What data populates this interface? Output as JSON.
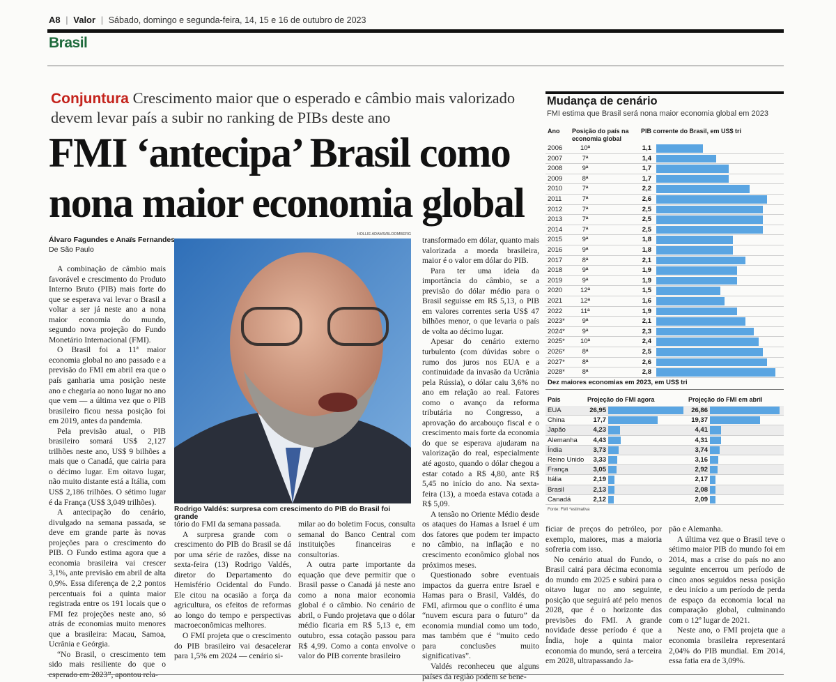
{
  "header": {
    "page": "A8",
    "paper": "Valor",
    "date": "Sábado, domingo e segunda-feira, 14, 15 e 16 de outubro de 2023",
    "section": "Brasil"
  },
  "article": {
    "kicker": "Conjuntura",
    "deck": "Crescimento maior que o esperado e câmbio mais valorizado devem levar país a subir no ranking de PIBs deste ano",
    "headline": [
      "FMI ‘antecipa’ Brasil como",
      "nona maior economia global"
    ],
    "byline": "Álvaro Fagundes e Anaïs Fernandes",
    "dateline": "De São Paulo",
    "photo_credit": "HOLLIE ADAMS/BLOOMBERG",
    "caption": "Rodrigo Valdés: surpresa com crescimento do PIB do Brasil foi grande",
    "columns": [
      [
        "A combinação de câmbio mais favorável e crescimento do Produto Interno Bruto (PIB) mais forte do que se esperava vai levar o Brasil a voltar a ser já neste ano a nona maior economia do mundo, segundo nova projeção do Fundo Monetário Internacional (FMI).",
        "O Brasil foi a 11ª maior economia global no ano passado e a previsão do FMI em abril era que o país ganharia uma posição neste ano e chegaria ao nono lugar no ano que vem — a última vez que o PIB brasileiro ficou nessa posição foi em 2019, antes da pandemia.",
        "Pela previsão atual, o PIB brasileiro somará US$ 2,127 trilhões neste ano, US$ 9 bilhões a mais que o Canadá, que cairia para o décimo lugar. Em oitavo lugar, não muito distante está a Itália, com US$ 2,186 trilhões. O sétimo lugar é da França (US$ 3,049 trilhões).",
        "A antecipação do cenário, divulgado na semana passada, se deve em grande parte às novas projeções para o crescimento do PIB. O Fundo estima agora que a economia brasileira vai crescer 3,1%, ante previsão em abril de alta 0,9%. Essa diferença de 2,2 pontos percentuais foi a quinta maior registrada entre os 191 locais que o FMI fez projeções neste ano, só atrás de economias muito menores que a brasileira: Macau, Samoa, Ucrânia e Geórgia.",
        "“No Brasil, o crescimento tem sido mais resiliente do que o esperado em 2023”, apontou rela-"
      ],
      [
        "tório do FMI da semana passada.",
        "A surpresa grande com o crescimento do PIB do Brasil se dá por uma série de razões, disse na sexta-feira (13) Rodrigo Valdés, diretor do Departamento do Hemisfério Ocidental do Fundo. Ele citou na ocasião a força da agricultura, os efeitos de reformas ao longo do tempo e perspectivas macroeconômicas melhores.",
        "O FMI projeta que o crescimento do PIB brasileiro vai desacelerar para 1,5% em 2024 — cenário si-"
      ],
      [
        "milar ao do boletim Focus, consulta semanal do Banco Central com instituições financeiras e consultorias.",
        "A outra parte importante da equação que deve permitir que o Brasil passe o Canadá já neste ano como a nona maior economia global é o câmbio. No cenário de abril, o Fundo projetava que o dólar médio ficaria em R$ 5,13 e, em outubro, essa cotação passou para R$ 4,99. Como a conta envolve o valor do PIB corrente brasileiro"
      ],
      [
        "transformado em dólar, quanto mais valorizada a moeda brasileira, maior é o valor em dólar do PIB.",
        "Para ter uma ideia da importância do câmbio, se a previsão do dólar médio para o Brasil seguisse em R$ 5,13, o PIB em valores correntes seria US$ 47 bilhões menor, o que levaria o país de volta ao décimo lugar.",
        "Apesar do cenário externo turbulento (com dúvidas sobre o rumo dos juros nos EUA e a continuidade da invasão da Ucrânia pela Rússia), o dólar caiu 3,6% no ano em relação ao real. Fatores como o avanço da reforma tributária no Congresso, a aprovação do arcabouço fiscal e o crescimento mais forte da economia do que se esperava ajudaram na valorização do real, especialmente até agosto, quando o dólar chegou a estar cotado a R$ 4,80, ante R$ 5,45 no início do ano. Na sexta-feira (13), a moeda estava cotada a R$ 5,09.",
        "A tensão no Oriente Médio desde os ataques do Hamas a Israel é um dos fatores que podem ter impacto no câmbio, na inflação e no crescimento econômico global nos próximos meses.",
        "Questionado sobre eventuais impactos da guerra entre Israel e Hamas para o Brasil, Valdés, do FMI, afirmou que o conflito é uma “nuvem escura para o futuro” da economia mundial como um todo, mas também que é “muito cedo para conclusões muito significativas”.",
        "Valdés reconheceu que alguns países da região podem se bene-"
      ],
      [
        "ficiar de preços do petróleo, por exemplo, maiores, mas a maioria sofreria com isso.",
        "No cenário atual do Fundo, o Brasil cairá para décima economia do mundo em 2025 e subirá para o oitavo lugar no ano seguinte, posição que seguirá até pelo menos 2028, que é o horizonte das previsões do FMI. A grande novidade desse período é que a Índia, hoje a quinta maior economia do mundo, será a terceira em 2028, ultrapassando Ja-"
      ],
      [
        "pão e Alemanha.",
        "A última vez que o Brasil teve o sétimo maior PIB do mundo foi em 2014, mas a crise do país no ano seguinte encerrou um período de cinco anos seguidos nessa posição e deu início a um período de perda de espaço da economia local na comparação global, culminando com o 12º lugar de 2021.",
        "Neste ano, o FMI projeta que a economia brasileira representará 2,04% do PIB mundial. Em 2014, essa fatia era de 3,09%."
      ]
    ]
  },
  "sidebar": {
    "title": "Mudança de cenário",
    "subtitle": "FMI estima que Brasil será nona maior economia global em 2023",
    "table1": {
      "headers": [
        "Ano",
        "Posição do país na economia global",
        "PIB corrente do Brasil, em US$ tri"
      ],
      "rows": [
        [
          "2006",
          "10ª",
          {
            "value": 1.1,
            "label": "1,1"
          }
        ],
        [
          "2007",
          "7ª",
          {
            "value": 1.4,
            "label": "1,4"
          }
        ],
        [
          "2008",
          "9ª",
          {
            "value": 1.7,
            "label": "1,7"
          }
        ],
        [
          "2009",
          "8ª",
          {
            "value": 1.7,
            "label": "1,7"
          }
        ],
        [
          "2010",
          "7ª",
          {
            "value": 2.2,
            "label": "2,2"
          }
        ],
        [
          "2011",
          "7ª",
          {
            "value": 2.6,
            "label": "2,6"
          }
        ],
        [
          "2012",
          "7ª",
          {
            "value": 2.5,
            "label": "2,5"
          }
        ],
        [
          "2013",
          "7ª",
          {
            "value": 2.5,
            "label": "2,5"
          }
        ],
        [
          "2014",
          "7ª",
          {
            "value": 2.5,
            "label": "2,5"
          }
        ],
        [
          "2015",
          "9ª",
          {
            "value": 1.8,
            "label": "1,8"
          }
        ],
        [
          "2016",
          "9ª",
          {
            "value": 1.8,
            "label": "1,8"
          }
        ],
        [
          "2017",
          "8ª",
          {
            "value": 2.1,
            "label": "2,1"
          }
        ],
        [
          "2018",
          "9ª",
          {
            "value": 1.9,
            "label": "1,9"
          }
        ],
        [
          "2019",
          "9ª",
          {
            "value": 1.9,
            "label": "1,9"
          }
        ],
        [
          "2020",
          "12ª",
          {
            "value": 1.5,
            "label": "1,5"
          }
        ],
        [
          "2021",
          "12ª",
          {
            "value": 1.6,
            "label": "1,6"
          }
        ],
        [
          "2022",
          "11ª",
          {
            "value": 1.9,
            "label": "1,9"
          }
        ],
        [
          "2023*",
          "9ª",
          {
            "value": 2.1,
            "label": "2,1"
          }
        ],
        [
          "2024*",
          "9ª",
          {
            "value": 2.3,
            "label": "2,3"
          }
        ],
        [
          "2025*",
          "10ª",
          {
            "value": 2.4,
            "label": "2,4"
          }
        ],
        [
          "2026*",
          "8ª",
          {
            "value": 2.5,
            "label": "2,5"
          }
        ],
        [
          "2027*",
          "8ª",
          {
            "value": 2.6,
            "label": "2,6"
          }
        ],
        [
          "2028*",
          "8ª",
          {
            "value": 2.8,
            "label": "2,8"
          }
        ]
      ]
    },
    "table2": {
      "title": "Dez maiores economias em 2023, em US$ tri",
      "headers": [
        "País",
        "Projeção do FMI agora",
        "Projeção do FMI em abril"
      ],
      "rows": [
        [
          "EUA",
          {
            "value": 26.95,
            "label": "26,95"
          },
          {
            "value": 26.86,
            "label": "26,86"
          }
        ],
        [
          "China",
          {
            "value": 17.7,
            "label": "17,7"
          },
          {
            "value": 19.37,
            "label": "19,37"
          }
        ],
        [
          "Japão",
          {
            "value": 4.23,
            "label": "4,23"
          },
          {
            "value": 4.41,
            "label": "4,41"
          }
        ],
        [
          "Alemanha",
          {
            "value": 4.43,
            "label": "4,43"
          },
          {
            "value": 4.31,
            "label": "4,31"
          }
        ],
        [
          "Índia",
          {
            "value": 3.73,
            "label": "3,73"
          },
          {
            "value": 3.74,
            "label": "3,74"
          }
        ],
        [
          "Reino Unido",
          {
            "value": 3.33,
            "label": "3,33"
          },
          {
            "value": 3.16,
            "label": "3,16"
          }
        ],
        [
          "França",
          {
            "value": 3.05,
            "label": "3,05"
          },
          {
            "value": 2.92,
            "label": "2,92"
          }
        ],
        [
          "Itália",
          {
            "value": 2.19,
            "label": "2,19"
          },
          {
            "value": 2.17,
            "label": "2,17"
          }
        ],
        [
          "Brasil",
          {
            "value": 2.13,
            "label": "2,13"
          },
          {
            "value": 2.08,
            "label": "2,08"
          }
        ],
        [
          "Canadá",
          {
            "value": 2.12,
            "label": "2,12"
          },
          {
            "value": 2.09,
            "label": "2,09"
          }
        ]
      ]
    },
    "source": "Fonte: FMI",
    "note": "*estimativa"
  }
}
